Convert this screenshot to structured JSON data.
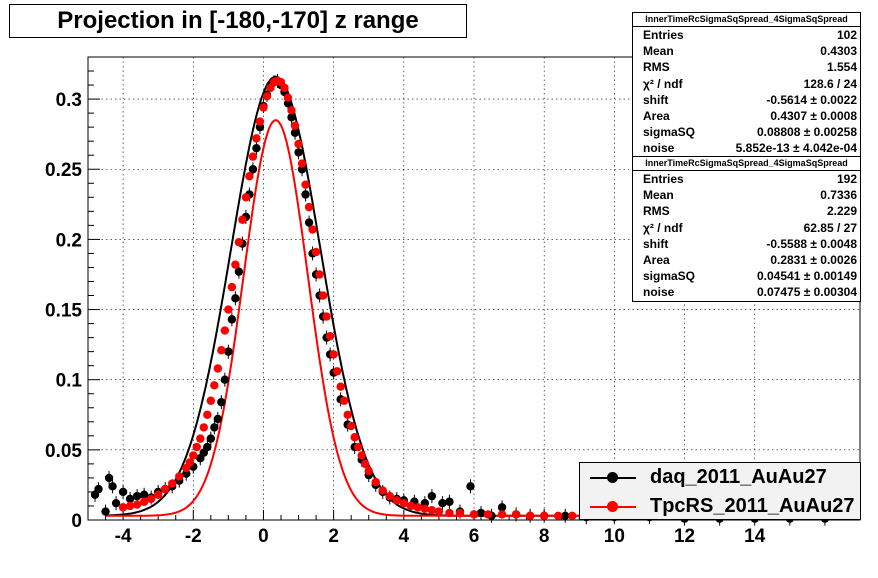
{
  "title": "Projection in [-180,-170] z range",
  "stats_boxes": [
    {
      "header": "InnerTimeRcSigmaSqSpread_4SigmaSqSpread",
      "rows": [
        {
          "label": "Entries",
          "value": "102"
        },
        {
          "label": "Mean",
          "value": "0.4303"
        },
        {
          "label": "RMS",
          "value": "1.554"
        },
        {
          "label": "χ² / ndf",
          "value": "128.6 / 24"
        },
        {
          "label": "shift",
          "value": "-0.5614 ± 0.0022"
        },
        {
          "label": "Area",
          "value": "0.4307 ± 0.0008"
        },
        {
          "label": "sigmaSQ",
          "value": "0.08808 ± 0.00258"
        },
        {
          "label": "noise",
          "value": "5.852e-13 ± 4.042e-04"
        }
      ]
    },
    {
      "header": "InnerTimeRcSigmaSqSpread_4SigmaSqSpread",
      "rows": [
        {
          "label": "Entries",
          "value": "192"
        },
        {
          "label": "Mean",
          "value": "0.7336"
        },
        {
          "label": "RMS",
          "value": "2.229"
        },
        {
          "label": "χ² / ndf",
          "value": "62.85 / 27"
        },
        {
          "label": "shift",
          "value": "-0.5588 ± 0.0048"
        },
        {
          "label": "Area",
          "value": "0.2831 ± 0.0026"
        },
        {
          "label": "sigmaSQ",
          "value": "0.04541 ± 0.00149"
        },
        {
          "label": "noise",
          "value": "0.07475 ± 0.00304"
        }
      ]
    }
  ],
  "chart_data": {
    "type": "scatter",
    "xlim": [
      -5,
      17
    ],
    "ylim": [
      0,
      0.33
    ],
    "x_ticks": [
      "-4",
      "-2",
      "0",
      "2",
      "4",
      "6",
      "8",
      "10",
      "12",
      "14"
    ],
    "x_tick_values": [
      -4,
      -2,
      0,
      2,
      4,
      6,
      8,
      10,
      12,
      14
    ],
    "y_ticks": [
      "0",
      "0.05",
      "0.1",
      "0.15",
      "0.2",
      "0.25",
      "0.3"
    ],
    "y_tick_values": [
      0,
      0.05,
      0.1,
      0.15,
      0.2,
      0.25,
      0.3
    ],
    "grid": true,
    "legend_position": "bottom-right",
    "series": [
      {
        "name": "daq_2011_AuAu27",
        "color": "#000000",
        "points": [
          [
            -4.8,
            0.018
          ],
          [
            -4.7,
            0.022
          ],
          [
            -4.5,
            0.006
          ],
          [
            -4.4,
            0.03
          ],
          [
            -4.3,
            0.024
          ],
          [
            -4.2,
            0.012
          ],
          [
            -4.0,
            0.02
          ],
          [
            -3.8,
            0.015
          ],
          [
            -3.6,
            0.017
          ],
          [
            -3.4,
            0.018
          ],
          [
            -3.2,
            0.016
          ],
          [
            -3.0,
            0.02
          ],
          [
            -2.8,
            0.022
          ],
          [
            -2.6,
            0.024
          ],
          [
            -2.4,
            0.028
          ],
          [
            -2.2,
            0.033
          ],
          [
            -2.0,
            0.038
          ],
          [
            -1.8,
            0.044
          ],
          [
            -1.7,
            0.048
          ],
          [
            -1.6,
            0.052
          ],
          [
            -1.5,
            0.058
          ],
          [
            -1.4,
            0.066
          ],
          [
            -1.3,
            0.072
          ],
          [
            -1.2,
            0.084
          ],
          [
            -1.1,
            0.1
          ],
          [
            -1.0,
            0.12
          ],
          [
            -0.9,
            0.143
          ],
          [
            -0.8,
            0.158
          ],
          [
            -0.7,
            0.177
          ],
          [
            -0.6,
            0.197
          ],
          [
            -0.5,
            0.216
          ],
          [
            -0.4,
            0.232
          ],
          [
            -0.3,
            0.25
          ],
          [
            -0.2,
            0.265
          ],
          [
            -0.1,
            0.28
          ],
          [
            0.0,
            0.295
          ],
          [
            0.1,
            0.303
          ],
          [
            0.2,
            0.31
          ],
          [
            0.3,
            0.312
          ],
          [
            0.4,
            0.313
          ],
          [
            0.5,
            0.31
          ],
          [
            0.6,
            0.305
          ],
          [
            0.7,
            0.297
          ],
          [
            0.8,
            0.287
          ],
          [
            0.9,
            0.276
          ],
          [
            1.0,
            0.262
          ],
          [
            1.1,
            0.25
          ],
          [
            1.2,
            0.232
          ],
          [
            1.3,
            0.212
          ],
          [
            1.4,
            0.19
          ],
          [
            1.5,
            0.175
          ],
          [
            1.6,
            0.16
          ],
          [
            1.7,
            0.145
          ],
          [
            1.8,
            0.13
          ],
          [
            1.9,
            0.118
          ],
          [
            2.0,
            0.105
          ],
          [
            2.2,
            0.086
          ],
          [
            2.4,
            0.068
          ],
          [
            2.6,
            0.052
          ],
          [
            2.8,
            0.043
          ],
          [
            3.0,
            0.032
          ],
          [
            3.2,
            0.025
          ],
          [
            3.4,
            0.02
          ],
          [
            3.6,
            0.016
          ],
          [
            3.8,
            0.015
          ],
          [
            4.0,
            0.014
          ],
          [
            4.3,
            0.013
          ],
          [
            4.6,
            0.012
          ],
          [
            4.8,
            0.017
          ],
          [
            5.1,
            0.012
          ],
          [
            5.3,
            0.013
          ],
          [
            5.6,
            0.006
          ],
          [
            5.9,
            0.024
          ],
          [
            6.2,
            0.005
          ],
          [
            6.5,
            0.003
          ],
          [
            6.8,
            0.009
          ],
          [
            7.2,
            0.004
          ],
          [
            7.6,
            0.003
          ],
          [
            8.0,
            0.003
          ],
          [
            8.6,
            0.003
          ],
          [
            9.2,
            0.002
          ],
          [
            10.0,
            0.002
          ],
          [
            11.0,
            0.002
          ],
          [
            12.0,
            0.001
          ],
          [
            13.0,
            0.001
          ],
          [
            14.0,
            0.001
          ],
          [
            15.0,
            0.001
          ],
          [
            16.0,
            0.001
          ]
        ]
      },
      {
        "name": "TpcRS_2011_AuAu27",
        "color": "#ff0000",
        "points": [
          [
            -4.0,
            0.009
          ],
          [
            -3.8,
            0.01
          ],
          [
            -3.6,
            0.011
          ],
          [
            -3.4,
            0.013
          ],
          [
            -3.2,
            0.015
          ],
          [
            -3.0,
            0.018
          ],
          [
            -2.8,
            0.022
          ],
          [
            -2.6,
            0.026
          ],
          [
            -2.4,
            0.031
          ],
          [
            -2.2,
            0.037
          ],
          [
            -2.1,
            0.041
          ],
          [
            -2.0,
            0.046
          ],
          [
            -1.9,
            0.052
          ],
          [
            -1.8,
            0.058
          ],
          [
            -1.7,
            0.066
          ],
          [
            -1.6,
            0.075
          ],
          [
            -1.5,
            0.085
          ],
          [
            -1.4,
            0.096
          ],
          [
            -1.3,
            0.108
          ],
          [
            -1.2,
            0.121
          ],
          [
            -1.1,
            0.135
          ],
          [
            -1.0,
            0.15
          ],
          [
            -0.9,
            0.166
          ],
          [
            -0.8,
            0.182
          ],
          [
            -0.7,
            0.198
          ],
          [
            -0.6,
            0.214
          ],
          [
            -0.5,
            0.23
          ],
          [
            -0.4,
            0.245
          ],
          [
            -0.3,
            0.259
          ],
          [
            -0.2,
            0.272
          ],
          [
            -0.1,
            0.284
          ],
          [
            0.0,
            0.294
          ],
          [
            0.1,
            0.302
          ],
          [
            0.2,
            0.308
          ],
          [
            0.3,
            0.312
          ],
          [
            0.4,
            0.313
          ],
          [
            0.5,
            0.312
          ],
          [
            0.6,
            0.308
          ],
          [
            0.7,
            0.301
          ],
          [
            0.8,
            0.292
          ],
          [
            0.9,
            0.281
          ],
          [
            1.0,
            0.268
          ],
          [
            1.1,
            0.254
          ],
          [
            1.2,
            0.239
          ],
          [
            1.3,
            0.223
          ],
          [
            1.4,
            0.207
          ],
          [
            1.5,
            0.191
          ],
          [
            1.6,
            0.175
          ],
          [
            1.7,
            0.16
          ],
          [
            1.8,
            0.145
          ],
          [
            1.9,
            0.131
          ],
          [
            2.0,
            0.118
          ],
          [
            2.1,
            0.106
          ],
          [
            2.2,
            0.095
          ],
          [
            2.3,
            0.085
          ],
          [
            2.4,
            0.075
          ],
          [
            2.5,
            0.067
          ],
          [
            2.6,
            0.059
          ],
          [
            2.7,
            0.052
          ],
          [
            2.8,
            0.046
          ],
          [
            2.9,
            0.04
          ],
          [
            3.0,
            0.035
          ],
          [
            3.2,
            0.027
          ],
          [
            3.4,
            0.021
          ],
          [
            3.6,
            0.017
          ],
          [
            3.8,
            0.014
          ],
          [
            4.0,
            0.012
          ],
          [
            4.2,
            0.01
          ],
          [
            4.4,
            0.009
          ],
          [
            4.6,
            0.008
          ],
          [
            4.8,
            0.007
          ],
          [
            5.0,
            0.006
          ],
          [
            5.3,
            0.005
          ],
          [
            5.6,
            0.005
          ],
          [
            6.0,
            0.004
          ],
          [
            6.4,
            0.004
          ],
          [
            6.8,
            0.004
          ],
          [
            7.2,
            0.004
          ],
          [
            7.6,
            0.003
          ],
          [
            8.0,
            0.003
          ],
          [
            8.4,
            0.003
          ],
          [
            8.8,
            0.003
          ],
          [
            9.2,
            0.003
          ],
          [
            9.6,
            0.003
          ]
        ]
      }
    ],
    "fits": [
      {
        "series": "daq_2011_AuAu27",
        "color": "#000000",
        "shift": -0.5614,
        "area": 0.4307,
        "sigmaSQ": 0.08808,
        "noise": 0.0
      },
      {
        "series": "TpcRS_2011_AuAu27",
        "color": "#ff0000",
        "shift": -0.5588,
        "area": 0.2831,
        "sigmaSQ": 0.04541,
        "noise": 0.07475
      }
    ]
  }
}
